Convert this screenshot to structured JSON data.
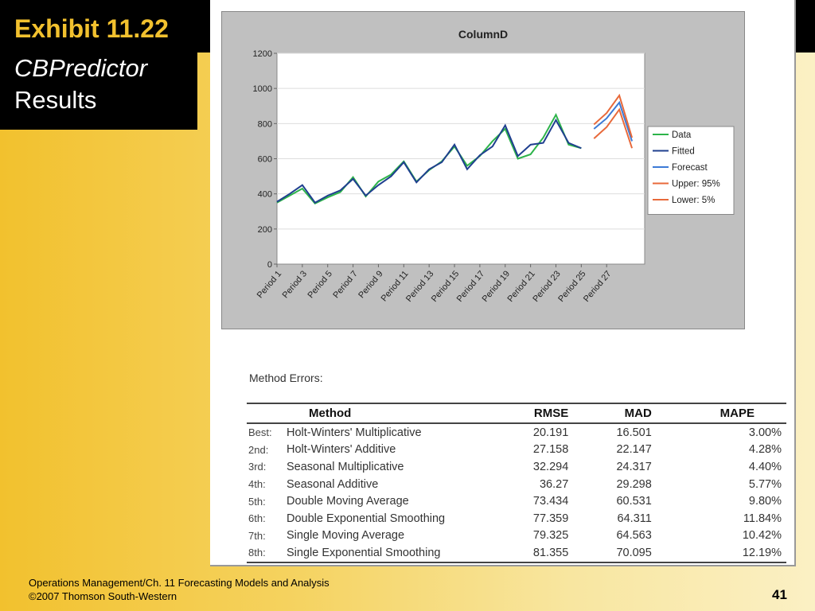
{
  "slide": {
    "exhibit": "Exhibit 11.22",
    "subtitle_line1": "CBPredictor",
    "subtitle_line2": "Results",
    "footer_line1": "Operations Management/Ch. 11 Forecasting Models and Analysis",
    "footer_line2": "©2007 Thomson South-Western",
    "page_number": "41"
  },
  "chart_data": {
    "type": "line",
    "title": "ColumnD",
    "ylim": [
      0,
      1200
    ],
    "yticks": [
      0,
      200,
      400,
      600,
      800,
      1000,
      1200
    ],
    "x_tick_labels": [
      "Period 1",
      "Period 3",
      "Period 5",
      "Period 7",
      "Period 9",
      "Period 11",
      "Period 13",
      "Period 15",
      "Period 17",
      "Period 19",
      "Period 21",
      "Period 23",
      "Period 25",
      "Period 27"
    ],
    "legend": [
      "Data",
      "Fitted",
      "Forecast",
      "Upper: 95%",
      "Lower: 5%"
    ],
    "legend_position": "right",
    "series": [
      {
        "name": "Data",
        "color": "#2db34a",
        "x": [
          1,
          2,
          3,
          4,
          5,
          6,
          7,
          8,
          9,
          10,
          11,
          12,
          13,
          14,
          15,
          16,
          17,
          18,
          19,
          20,
          21,
          22,
          23,
          24,
          25
        ],
        "values": [
          350,
          390,
          430,
          345,
          380,
          410,
          495,
          385,
          470,
          510,
          585,
          470,
          535,
          585,
          670,
          560,
          615,
          700,
          770,
          600,
          625,
          720,
          850,
          680,
          660
        ]
      },
      {
        "name": "Fitted",
        "color": "#1f3f8f",
        "x": [
          1,
          2,
          3,
          4,
          5,
          6,
          7,
          8,
          9,
          10,
          11,
          12,
          13,
          14,
          15,
          16,
          17,
          18,
          19,
          20,
          21,
          22,
          23,
          24,
          25
        ],
        "values": [
          355,
          400,
          450,
          350,
          390,
          420,
          485,
          390,
          450,
          500,
          580,
          465,
          540,
          580,
          680,
          540,
          620,
          670,
          790,
          615,
          680,
          690,
          820,
          690,
          660
        ]
      },
      {
        "name": "Forecast",
        "color": "#3c7ad6",
        "x": [
          26,
          27,
          28,
          29
        ],
        "values": [
          770,
          830,
          920,
          700
        ]
      },
      {
        "name": "Upper: 95%",
        "color": "#e8693a",
        "x": [
          26,
          27,
          28,
          29
        ],
        "values": [
          795,
          860,
          960,
          720
        ]
      },
      {
        "name": "Lower: 5%",
        "color": "#e8693a",
        "x": [
          26,
          27,
          28,
          29
        ],
        "values": [
          715,
          780,
          880,
          660
        ]
      }
    ]
  },
  "method_errors": {
    "label": "Method Errors:",
    "headers": [
      "Method",
      "RMSE",
      "MAD",
      "MAPE"
    ],
    "rows": [
      {
        "rank": "Best:",
        "method": "Holt-Winters' Multiplicative",
        "rmse": "20.191",
        "mad": "16.501",
        "mape": "3.00%"
      },
      {
        "rank": "2nd:",
        "method": "Holt-Winters' Additive",
        "rmse": "27.158",
        "mad": "22.147",
        "mape": "4.28%"
      },
      {
        "rank": "3rd:",
        "method": "Seasonal Multiplicative",
        "rmse": "32.294",
        "mad": "24.317",
        "mape": "4.40%"
      },
      {
        "rank": "4th:",
        "method": "Seasonal Additive",
        "rmse": "36.27",
        "mad": "29.298",
        "mape": "5.77%"
      },
      {
        "rank": "5th:",
        "method": "Double Moving Average",
        "rmse": "73.434",
        "mad": "60.531",
        "mape": "9.80%"
      },
      {
        "rank": "6th:",
        "method": "Double Exponential Smoothing",
        "rmse": "77.359",
        "mad": "64.311",
        "mape": "11.84%"
      },
      {
        "rank": "7th:",
        "method": "Single Moving Average",
        "rmse": "79.325",
        "mad": "64.563",
        "mape": "10.42%"
      },
      {
        "rank": "8th:",
        "method": "Single Exponential Smoothing",
        "rmse": "81.355",
        "mad": "70.095",
        "mape": "12.19%"
      }
    ]
  }
}
